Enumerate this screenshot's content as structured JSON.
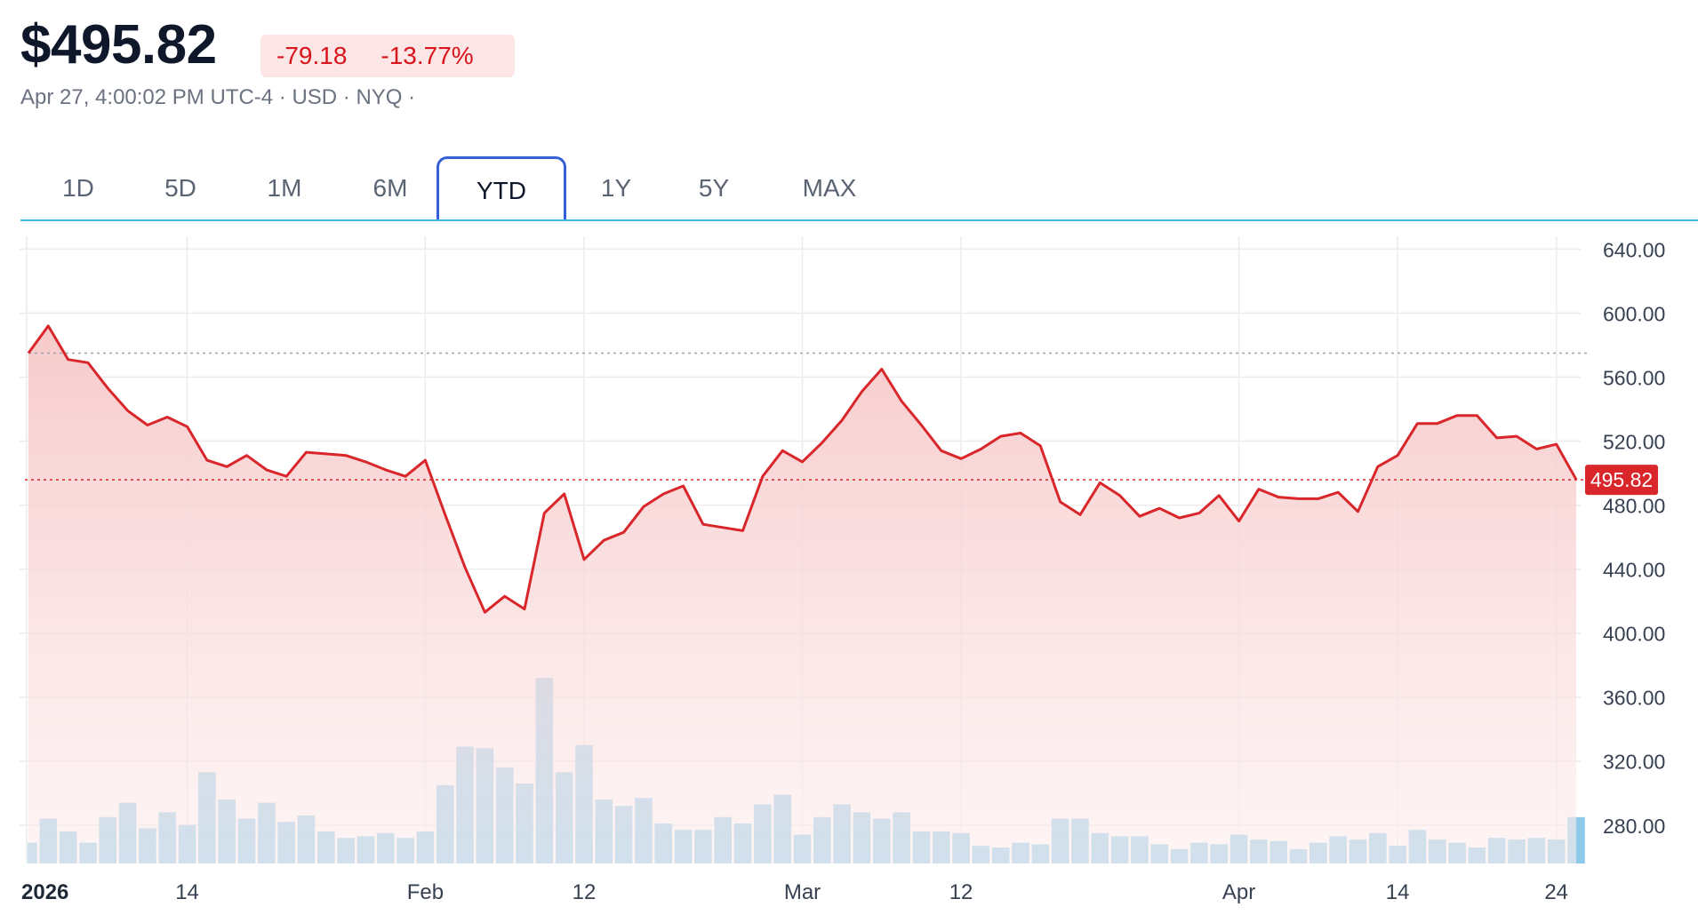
{
  "header": {
    "price": "$495.82",
    "change": "-79.18",
    "change_percent": "-13.77%",
    "meta": "Apr 27, 4:00:02 PM UTC-4 · USD · NYQ  ·"
  },
  "tabs": [
    {
      "label": "1D",
      "active": false
    },
    {
      "label": "5D",
      "active": false
    },
    {
      "label": "1M",
      "active": false
    },
    {
      "label": "6M",
      "active": false
    },
    {
      "label": "YTD",
      "active": true
    },
    {
      "label": "1Y",
      "active": false
    },
    {
      "label": "5Y",
      "active": false
    },
    {
      "label": "MAX",
      "active": false
    }
  ],
  "colors": {
    "line": "#d9262b",
    "area": "#f6c7c8",
    "volume": "#8ecbea",
    "accent_tab": "#3461d6",
    "badge_bg": "#fde6e6",
    "badge_text": "#d8141c"
  },
  "chart_data": {
    "type": "line",
    "x_labels": [
      "2026",
      "14",
      "Feb",
      "12",
      "Mar",
      "12",
      "Apr",
      "14",
      "24"
    ],
    "y_ticks": [
      "640.00",
      "600.00",
      "560.00",
      "520.00",
      "480.00",
      "440.00",
      "400.00",
      "360.00",
      "320.00",
      "280.00"
    ],
    "ylim": [
      256,
      648
    ],
    "previous_close": 575,
    "current_price_label": "495.82",
    "current_price": 495.82,
    "grid": true,
    "series": [
      {
        "values": [
          575,
          592,
          571,
          569,
          553,
          539,
          530,
          535,
          529,
          508,
          504,
          511,
          502,
          498,
          513,
          512,
          511,
          507,
          502,
          498,
          508,
          474,
          441,
          413,
          423,
          415,
          475,
          487,
          446,
          458,
          463,
          479,
          487,
          492,
          468,
          466,
          464,
          498,
          514,
          507,
          519,
          533,
          551,
          565,
          545,
          530,
          514,
          509,
          515,
          523,
          525,
          517,
          482,
          474,
          494,
          486,
          473,
          478,
          472,
          475,
          486,
          470,
          490,
          485,
          484,
          484,
          488,
          476,
          504,
          511,
          531,
          531,
          536,
          536,
          522,
          523,
          515,
          518,
          496
        ]
      }
    ],
    "volume": [
      269,
      284,
      276,
      269,
      285,
      294,
      278,
      288,
      280,
      313,
      296,
      284,
      294,
      282,
      286,
      276,
      272,
      273,
      275,
      272,
      276,
      305,
      329,
      328,
      316,
      306,
      372,
      313,
      330,
      296,
      292,
      297,
      281,
      277,
      277,
      285,
      281,
      293,
      299,
      274,
      285,
      293,
      288,
      284,
      288,
      276,
      276,
      275,
      267,
      266,
      269,
      268,
      284,
      284,
      275,
      273,
      273,
      268,
      265,
      269,
      268,
      274,
      271,
      270,
      265,
      269,
      273,
      271,
      275,
      267,
      277,
      271,
      269,
      266,
      272,
      271,
      272,
      271,
      285
    ]
  }
}
